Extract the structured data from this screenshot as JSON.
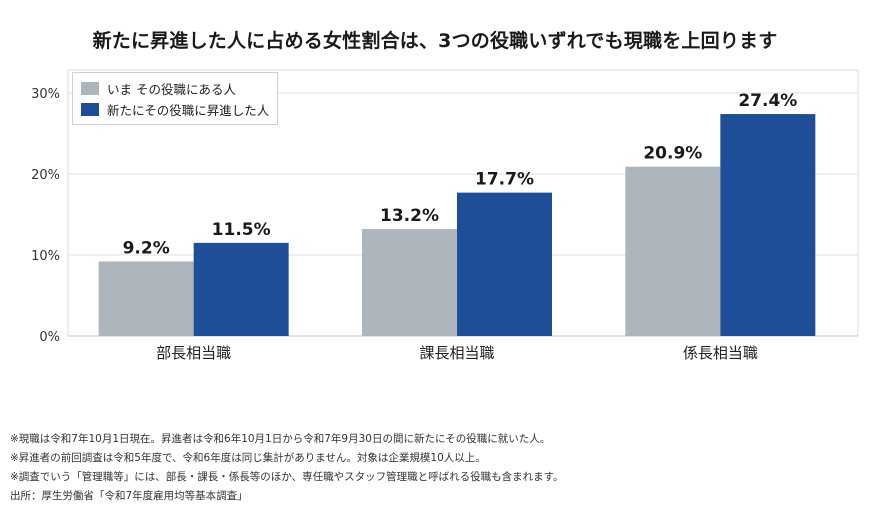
{
  "title": "新たに昇進した人に占める女性割合は、3つの役職いずれでも現職を上回ります",
  "legend": [
    {
      "label": "いま その役職にある人",
      "color": "#adb5bd"
    },
    {
      "label": "新たにその役職に昇進した人",
      "color": "#1f4e99"
    }
  ],
  "chart_data": {
    "type": "bar",
    "categories": [
      "部長相当職",
      "課長相当職",
      "係長相当職"
    ],
    "series": [
      {
        "name": "いま その役職にある人",
        "values": [
          9.2,
          13.2,
          20.9
        ],
        "labels": [
          "9.2%",
          "13.2%",
          "20.9%"
        ],
        "color": "#adb5bd"
      },
      {
        "name": "新たにその役職に昇進した人",
        "values": [
          11.5,
          17.7,
          27.4
        ],
        "labels": [
          "11.5%",
          "17.7%",
          "27.4%"
        ],
        "color": "#1f4e99"
      }
    ],
    "yticks": [
      0,
      10,
      20,
      30
    ],
    "ytick_labels": [
      "0%",
      "10%",
      "20%",
      "30%"
    ],
    "ylim": [
      0,
      30
    ],
    "grid": true,
    "legend_position": "top-left"
  },
  "notes": [
    "※現職は令和7年10月1日現在。昇進者は令和6年10月1日から令和7年9月30日の間に新たにその役職に就いた人。",
    "※昇進者の前回調査は令和5年度で、令和6年度は同じ集計がありません。対象は企業規模10人以上。",
    "※調査でいう「管理職等」には、部長・課長・係長等のほか、専任職やスタッフ管理職と呼ばれる役職も含まれます。",
    "出所：厚生労働省「令和7年度雇用均等基本調査」"
  ]
}
